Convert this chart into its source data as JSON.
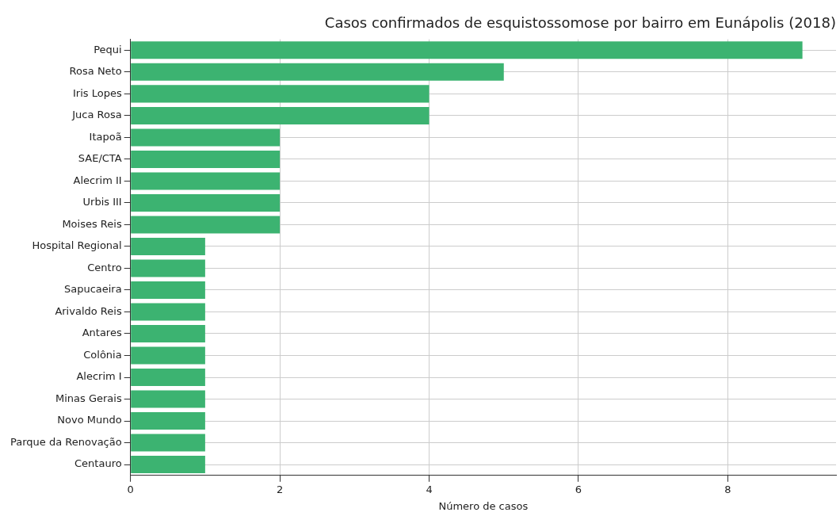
{
  "chart_data": {
    "type": "bar",
    "orientation": "horizontal",
    "title": "Casos confirmados de esquistossomose por bairro em Eunápolis (2018)",
    "xlabel": "Número de casos",
    "categories": [
      "Pequi",
      "Rosa Neto",
      "Iris Lopes",
      "Juca Rosa",
      "Itapoã",
      "SAE/CTA",
      "Alecrim II",
      "Urbis III",
      "Moises Reis",
      "Hospital Regional",
      "Centro",
      "Sapucaeira",
      "Arivaldo Reis",
      "Antares",
      "Colônia",
      "Alecrim I",
      "Minas Gerais",
      "Novo Mundo",
      "Parque da Renovação",
      "Centauro"
    ],
    "values": [
      9,
      5,
      4,
      4,
      2,
      2,
      2,
      2,
      2,
      1,
      1,
      1,
      1,
      1,
      1,
      1,
      1,
      1,
      1,
      1
    ],
    "color": "#3cb371",
    "xlim": [
      0,
      9.45
    ],
    "xticks": [
      0,
      2,
      4,
      6,
      8
    ],
    "grid": true,
    "legend": false
  }
}
